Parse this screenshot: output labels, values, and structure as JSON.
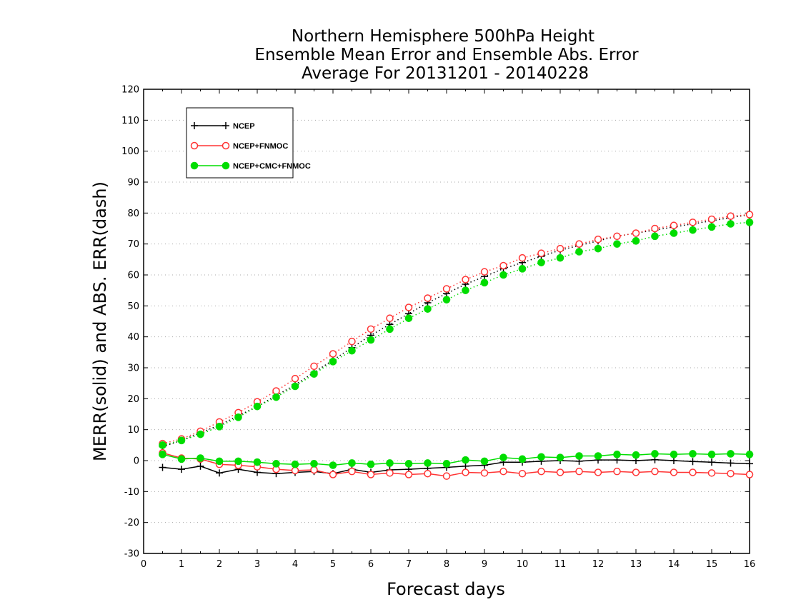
{
  "chart_data": {
    "type": "line",
    "title": [
      "Northern Hemisphere 500hPa Height",
      "Ensemble Mean Error and Ensemble Abs. Error",
      "Average For 20131201 - 20140228"
    ],
    "xlabel": "Forecast days",
    "ylabel": "MERR(solid) and ABS. ERR(dash)",
    "xlim": [
      0,
      16
    ],
    "ylim": [
      -30,
      120
    ],
    "x_ticks": [
      0,
      1,
      2,
      3,
      4,
      5,
      6,
      7,
      8,
      9,
      10,
      11,
      12,
      13,
      14,
      15,
      16
    ],
    "y_ticks": [
      -30,
      -20,
      -10,
      0,
      10,
      20,
      30,
      40,
      50,
      60,
      70,
      80,
      90,
      100,
      110,
      120
    ],
    "grid": true,
    "legend_position": "top-left",
    "x": [
      0.5,
      1,
      1.5,
      2,
      2.5,
      3,
      3.5,
      4,
      4.5,
      5,
      5.5,
      6,
      6.5,
      7,
      7.5,
      8,
      8.5,
      9,
      9.5,
      10,
      10.5,
      11,
      11.5,
      12,
      12.5,
      13,
      13.5,
      14,
      14.5,
      15,
      15.5,
      16
    ],
    "series": [
      {
        "name": "NCEP",
        "color": "#000000",
        "marker": "plus",
        "merr": [
          -2.2,
          -2.8,
          -1.8,
          -4.0,
          -2.8,
          -3.8,
          -4.2,
          -3.8,
          -3.5,
          -4.2,
          -2.8,
          -3.8,
          -3.0,
          -2.8,
          -2.5,
          -2.2,
          -1.8,
          -1.5,
          -0.5,
          -0.5,
          -0.2,
          0.0,
          -0.2,
          0.2,
          0.2,
          0.0,
          0.3,
          0.0,
          -0.3,
          -0.5,
          -0.8,
          -1.0
        ],
        "abs_err": [
          4.5,
          6.5,
          9.0,
          11.5,
          14.5,
          17.5,
          21.0,
          24.5,
          28.5,
          32.5,
          36.5,
          40.5,
          44.0,
          47.5,
          51.0,
          54.0,
          57.0,
          59.5,
          62.0,
          64.0,
          66.0,
          68.0,
          69.5,
          71.0,
          72.5,
          73.5,
          74.5,
          75.5,
          76.5,
          77.5,
          78.5,
          79.5
        ]
      },
      {
        "name": "NCEP+FNMOC",
        "color": "#ff3333",
        "marker": "open-circle",
        "merr": [
          2.5,
          0.8,
          0.5,
          -1.2,
          -1.5,
          -2.0,
          -2.8,
          -3.2,
          -3.0,
          -4.5,
          -3.5,
          -4.5,
          -4.0,
          -4.5,
          -4.2,
          -5.0,
          -3.8,
          -4.0,
          -3.5,
          -4.2,
          -3.5,
          -3.8,
          -3.5,
          -3.8,
          -3.5,
          -3.8,
          -3.5,
          -3.8,
          -3.8,
          -4.0,
          -4.2,
          -4.5
        ],
        "abs_err": [
          5.5,
          7.0,
          9.5,
          12.5,
          15.5,
          19.0,
          22.5,
          26.5,
          30.5,
          34.5,
          38.5,
          42.5,
          46.0,
          49.5,
          52.5,
          55.5,
          58.5,
          61.0,
          63.0,
          65.5,
          67.0,
          68.5,
          70.0,
          71.5,
          72.5,
          73.5,
          75.0,
          76.0,
          77.0,
          78.0,
          79.0,
          79.5
        ]
      },
      {
        "name": "NCEP+CMC+FNMOC",
        "color": "#00dd00",
        "marker": "filled-circle",
        "merr": [
          2.0,
          0.5,
          0.8,
          -0.2,
          -0.2,
          -0.5,
          -1.0,
          -1.2,
          -1.0,
          -1.5,
          -0.8,
          -1.2,
          -0.8,
          -1.0,
          -0.8,
          -1.0,
          0.2,
          -0.2,
          1.0,
          0.5,
          1.2,
          1.0,
          1.5,
          1.5,
          2.0,
          1.8,
          2.2,
          2.0,
          2.2,
          2.0,
          2.2,
          2.0
        ],
        "abs_err": [
          5.0,
          6.5,
          8.5,
          11.0,
          14.0,
          17.5,
          20.5,
          24.0,
          28.0,
          32.0,
          35.5,
          39.0,
          42.5,
          46.0,
          49.0,
          52.0,
          55.0,
          57.5,
          60.0,
          62.0,
          64.0,
          65.5,
          67.5,
          68.5,
          70.0,
          71.0,
          72.5,
          73.5,
          74.5,
          75.5,
          76.5,
          77.0
        ]
      }
    ]
  }
}
